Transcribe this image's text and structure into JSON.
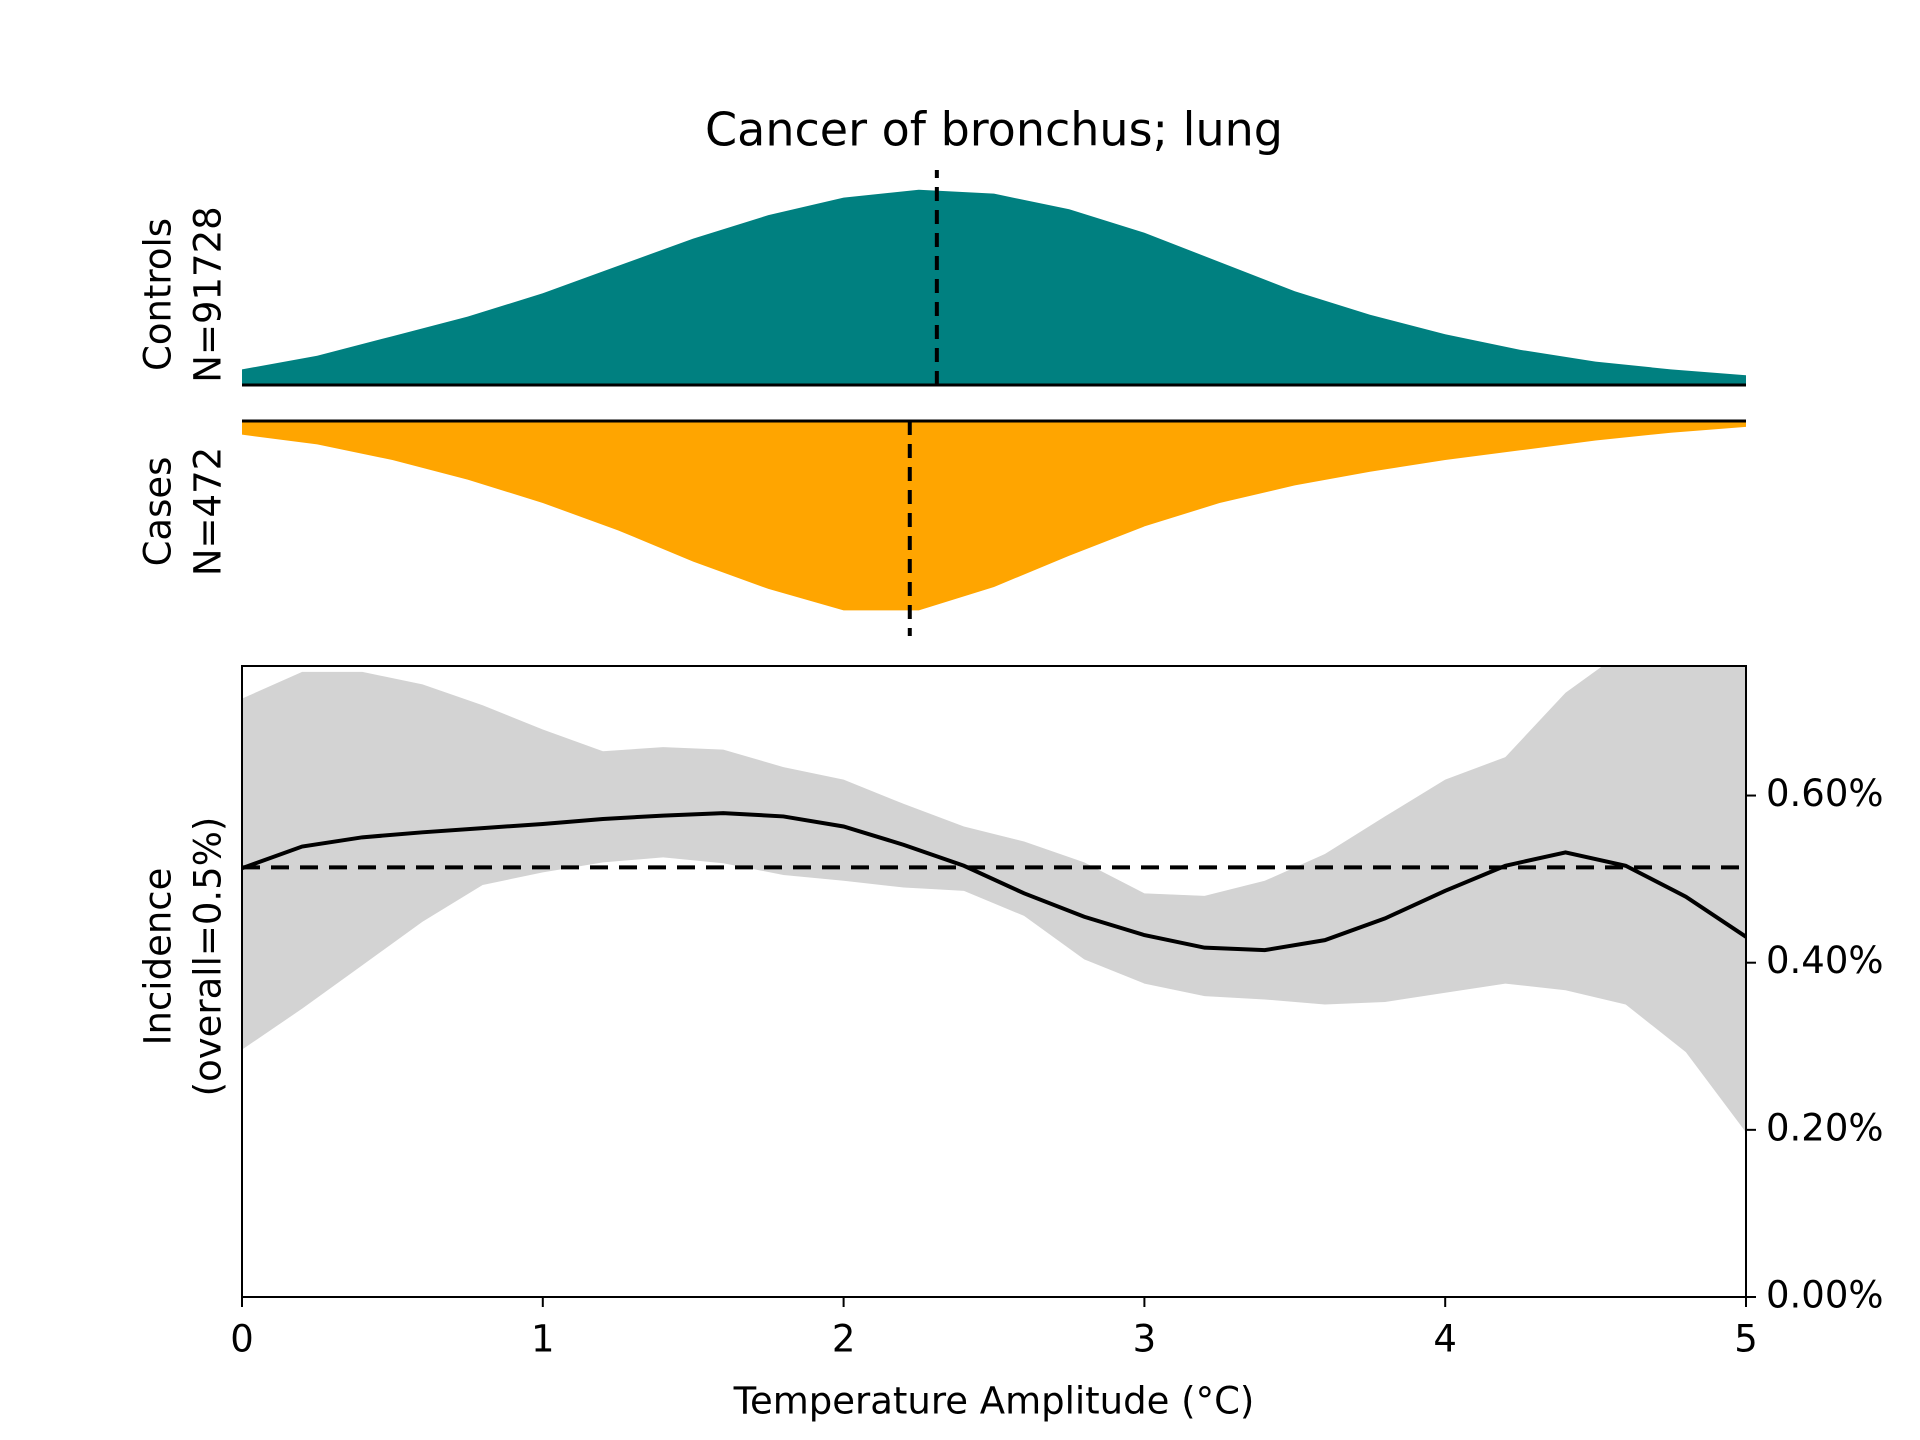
{
  "chart_data": [
    {
      "type": "density",
      "title": "Cancer of bronchus; lung",
      "ylabel": [
        "Controls",
        "N=91728"
      ],
      "direction": "up",
      "color": "#008080",
      "x": [
        0,
        0.25,
        0.5,
        0.75,
        1,
        1.25,
        1.5,
        1.75,
        2,
        2.25,
        2.5,
        2.75,
        3,
        3.25,
        3.5,
        3.75,
        4,
        4.25,
        4.5,
        4.75,
        5
      ],
      "values": [
        0.08,
        0.15,
        0.25,
        0.35,
        0.47,
        0.61,
        0.75,
        0.87,
        0.96,
        1.0,
        0.98,
        0.9,
        0.78,
        0.63,
        0.48,
        0.36,
        0.26,
        0.18,
        0.12,
        0.08,
        0.05
      ],
      "median": 2.31,
      "xlim": [
        0,
        5
      ],
      "ylim": [
        0,
        1.05
      ]
    },
    {
      "type": "density",
      "ylabel": [
        "Cases",
        "N=472"
      ],
      "direction": "down",
      "color": "#ffa500",
      "x": [
        0,
        0.25,
        0.5,
        0.75,
        1,
        1.25,
        1.5,
        1.75,
        2,
        2.25,
        2.5,
        2.75,
        3,
        3.25,
        3.5,
        3.75,
        4,
        4.25,
        4.5,
        4.75,
        5
      ],
      "values": [
        0.07,
        0.12,
        0.2,
        0.3,
        0.42,
        0.56,
        0.72,
        0.86,
        0.97,
        0.97,
        0.85,
        0.69,
        0.54,
        0.42,
        0.33,
        0.26,
        0.2,
        0.15,
        0.1,
        0.06,
        0.03
      ],
      "median": 2.22,
      "xlim": [
        0,
        5
      ],
      "ylim": [
        0,
        1.05
      ]
    },
    {
      "type": "line",
      "xlabel": "Temperature Amplitude (°C)",
      "ylabel": [
        "Incidence",
        "(overall=0.5%)"
      ],
      "y_axis_side": "right",
      "color": "#000000",
      "band_color": "#d3d3d3",
      "x": [
        0,
        0.2,
        0.4,
        0.6,
        0.8,
        1,
        1.2,
        1.4,
        1.6,
        1.8,
        2,
        2.2,
        2.4,
        2.6,
        2.8,
        3,
        3.2,
        3.4,
        3.6,
        3.8,
        4,
        4.2,
        4.4,
        4.6,
        4.8,
        5
      ],
      "values": [
        0.513,
        0.539,
        0.55,
        0.556,
        0.561,
        0.566,
        0.572,
        0.576,
        0.579,
        0.575,
        0.563,
        0.541,
        0.516,
        0.483,
        0.455,
        0.433,
        0.418,
        0.415,
        0.427,
        0.453,
        0.486,
        0.516,
        0.532,
        0.516,
        0.479,
        0.431
      ],
      "ci_upper": [
        0.716,
        0.748,
        0.748,
        0.733,
        0.708,
        0.679,
        0.653,
        0.658,
        0.655,
        0.634,
        0.619,
        0.59,
        0.563,
        0.545,
        0.52,
        0.483,
        0.48,
        0.498,
        0.53,
        0.575,
        0.619,
        0.646,
        0.723,
        0.775,
        0.782,
        0.782
      ],
      "ci_lower": [
        0.296,
        0.345,
        0.397,
        0.449,
        0.493,
        0.508,
        0.52,
        0.526,
        0.519,
        0.505,
        0.498,
        0.49,
        0.486,
        0.456,
        0.404,
        0.375,
        0.36,
        0.356,
        0.35,
        0.353,
        0.364,
        0.375,
        0.367,
        0.35,
        0.293,
        0.197
      ],
      "reference_line": 0.514,
      "xlim": [
        0,
        5
      ],
      "xticks": [
        0,
        1,
        2,
        3,
        4,
        5
      ],
      "ylim": [
        0,
        0.755
      ],
      "yticks": [
        {
          "value": 0,
          "label": "0.00%"
        },
        {
          "value": 0.2,
          "label": "0.20%"
        },
        {
          "value": 0.4,
          "label": "0.40%"
        },
        {
          "value": 0.6,
          "label": "0.60%"
        }
      ]
    }
  ]
}
